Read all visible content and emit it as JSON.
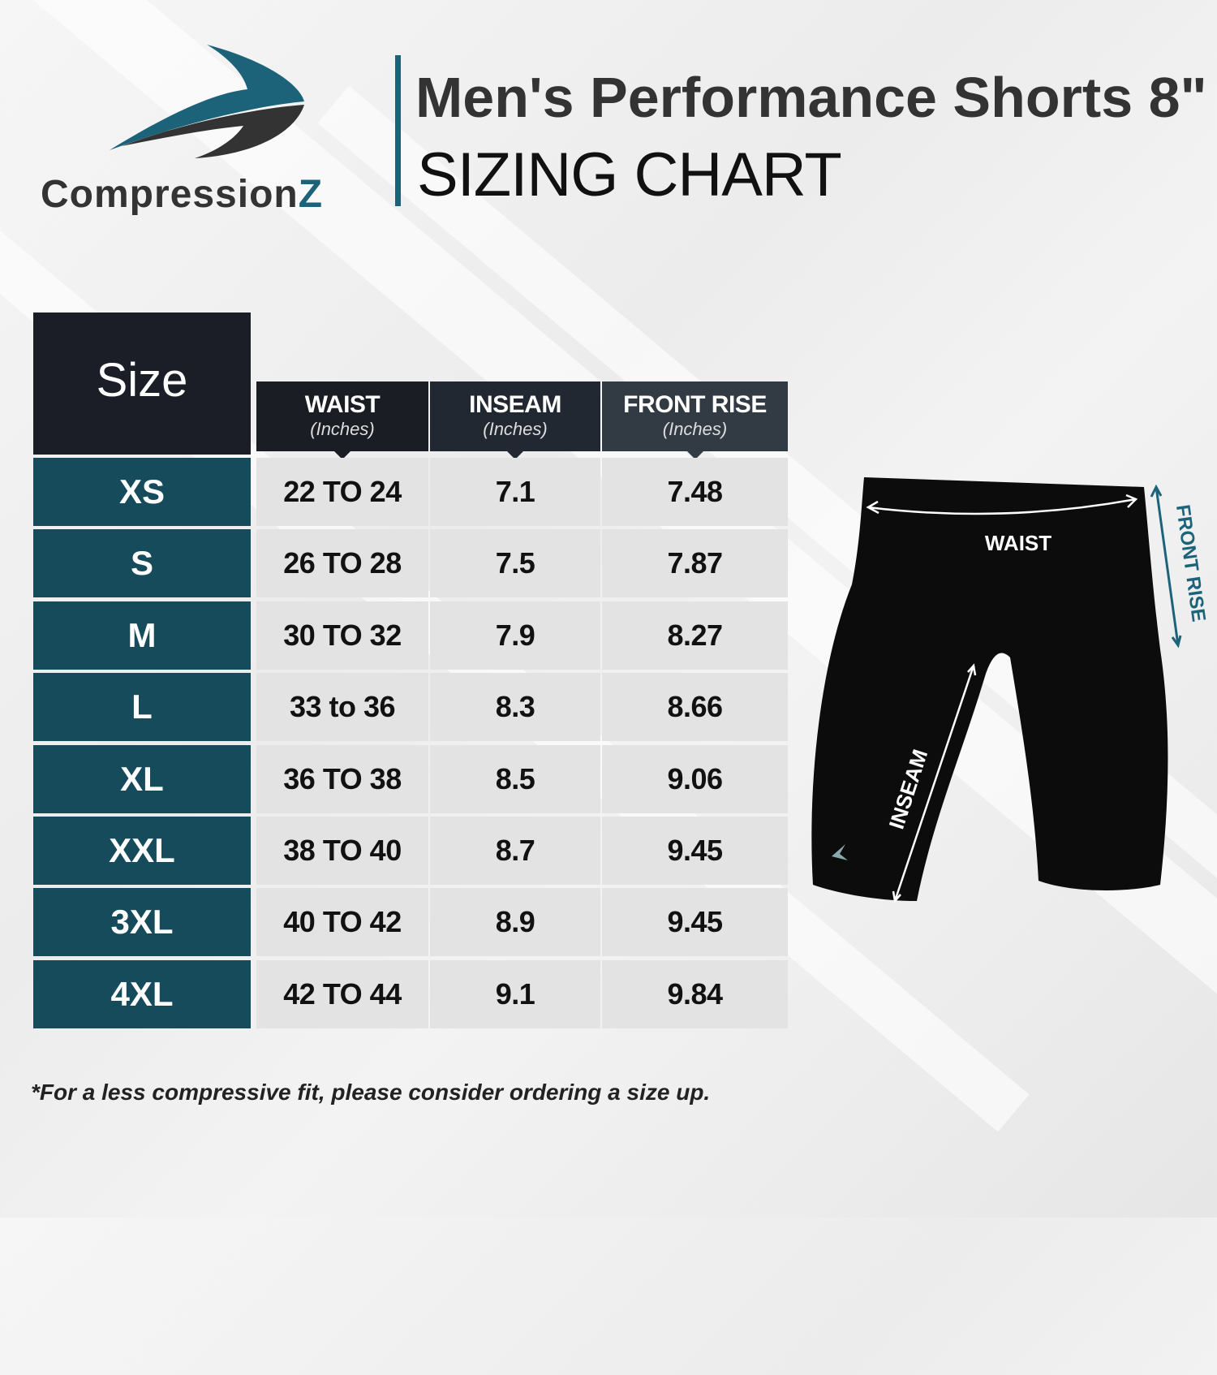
{
  "brand": {
    "name_main": "Compression",
    "name_accent": "Z",
    "logo": "swoosh-logo"
  },
  "title": {
    "line1": "Men's Performance Shorts 8\"",
    "line2": "SIZING CHART"
  },
  "table": {
    "size_header": "Size",
    "columns": [
      {
        "label": "WAIST",
        "unit": "(Inches)"
      },
      {
        "label": "INSEAM",
        "unit": "(Inches)"
      },
      {
        "label": "FRONT RISE",
        "unit": "(Inches)"
      }
    ],
    "rows": [
      {
        "size": "XS",
        "values": [
          "22 TO 24",
          "7.1",
          "7.48"
        ]
      },
      {
        "size": "S",
        "values": [
          "26 TO 28",
          "7.5",
          "7.87"
        ]
      },
      {
        "size": "M",
        "values": [
          "30 TO 32",
          "7.9",
          "8.27"
        ]
      },
      {
        "size": "L",
        "values": [
          "33 to 36",
          "8.3",
          "8.66"
        ]
      },
      {
        "size": "XL",
        "values": [
          "36 TO 38",
          "8.5",
          "9.06"
        ]
      },
      {
        "size": "XXL",
        "values": [
          "38 TO 40",
          "8.7",
          "9.45"
        ]
      },
      {
        "size": "3XL",
        "values": [
          "40 TO 42",
          "8.9",
          "9.45"
        ]
      },
      {
        "size": "4XL",
        "values": [
          "42 TO 44",
          "9.1",
          "9.84"
        ]
      }
    ]
  },
  "diagram": {
    "waist_label": "WAIST",
    "inseam_label": "INSEAM",
    "front_rise_label": "FRONT RISE"
  },
  "footnote": "*For a less compressive fit, please consider ordering a size up.",
  "colors": {
    "teal": "#164b5c",
    "accent": "#1c6379",
    "dark": "#1b1e27",
    "cell": "#e3e3e3"
  }
}
